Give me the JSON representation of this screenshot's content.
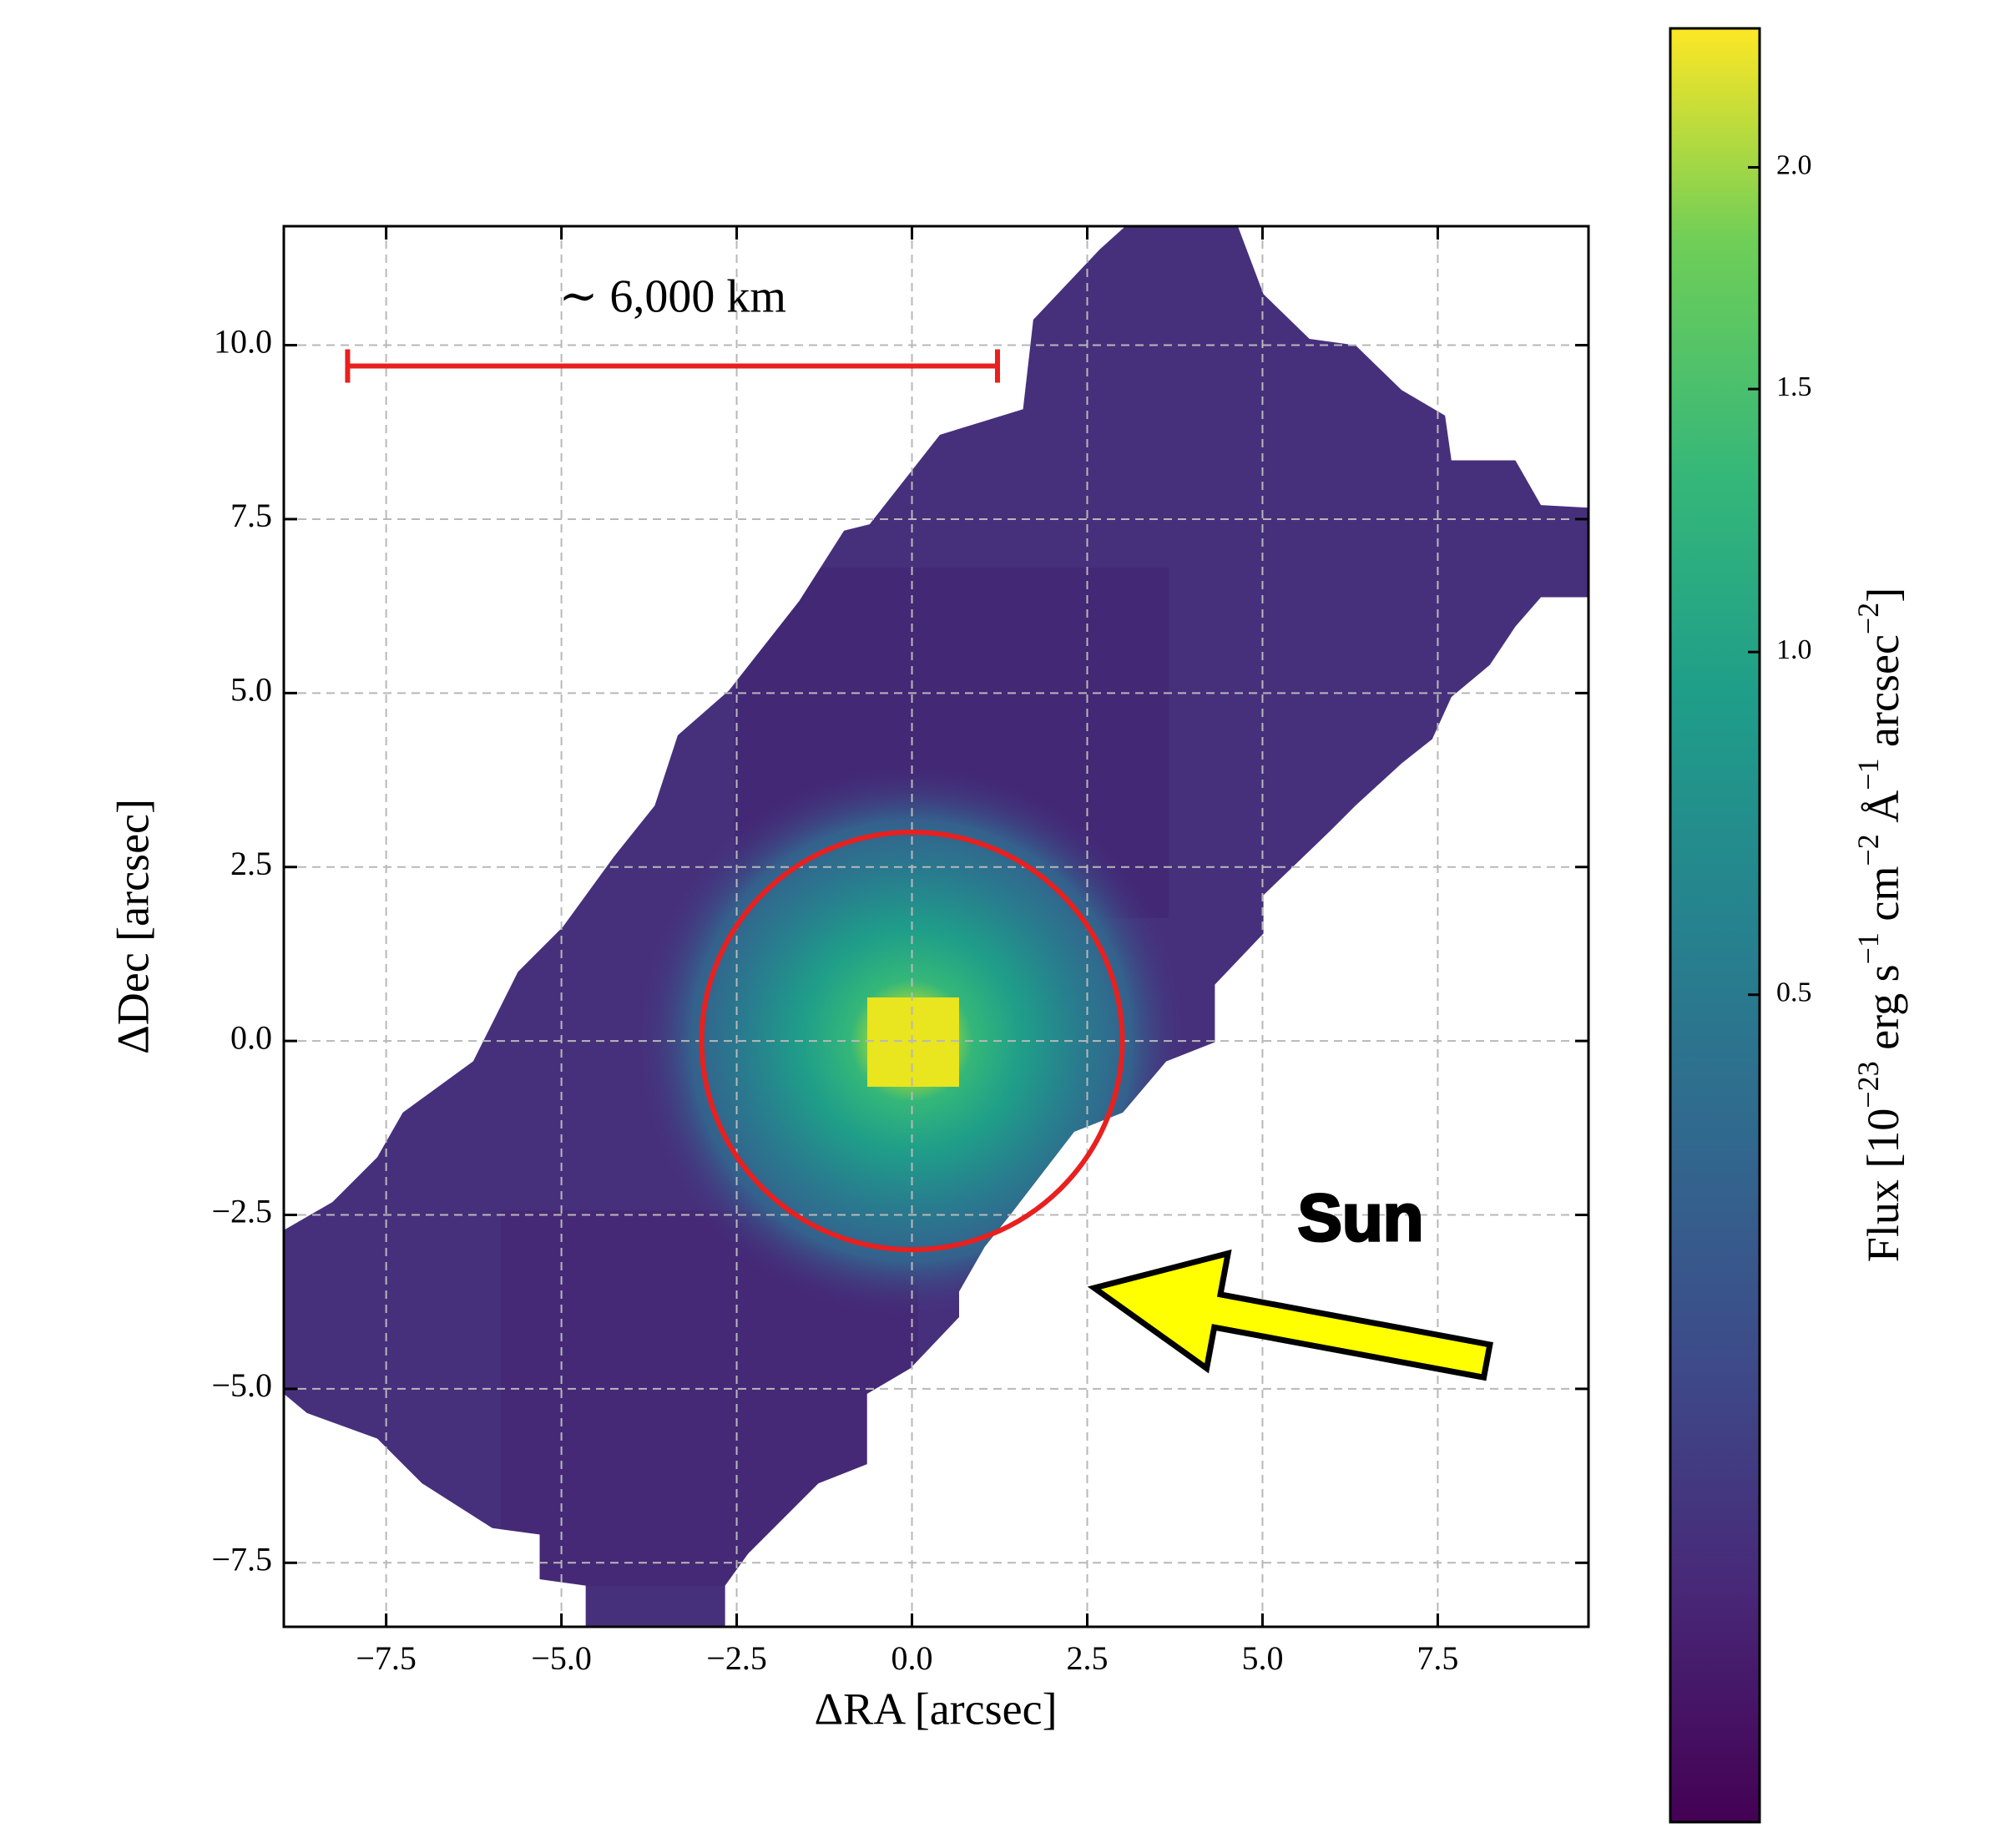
{
  "chart_data": {
    "type": "heatmap",
    "xlabel": "ΔRA [arcsec]",
    "ylabel": "ΔDec [arcsec]",
    "xlim": [
      -8.96,
      9.65
    ],
    "ylim": [
      -8.42,
      11.71
    ],
    "xticks": [
      {
        "value": -7.5,
        "label": "−7.5"
      },
      {
        "value": -5,
        "label": "−5.0"
      },
      {
        "value": -2.5,
        "label": "−2.5"
      },
      {
        "value": 0,
        "label": "0.0"
      },
      {
        "value": 2.5,
        "label": "2.5"
      },
      {
        "value": 5,
        "label": "5.0"
      },
      {
        "value": 7.5,
        "label": "7.5"
      }
    ],
    "yticks": [
      {
        "value": -7.5,
        "label": "−7.5"
      },
      {
        "value": -5,
        "label": "−5.0"
      },
      {
        "value": -2.5,
        "label": "−2.5"
      },
      {
        "value": 0,
        "label": "0.0"
      },
      {
        "value": 2.5,
        "label": "2.5"
      },
      {
        "value": 5,
        "label": "5.0"
      },
      {
        "value": 7.5,
        "label": "7.5"
      },
      {
        "value": 10,
        "label": "10.0"
      }
    ],
    "grid": true,
    "colorbar": {
      "label": [
        "Flux [10",
        "−23",
        " erg s",
        "−1",
        " cm",
        "−2",
        " Å",
        "−1",
        " arcsec",
        "−2",
        "]"
      ],
      "lim": [
        0,
        2.35
      ],
      "scale": "sqrt",
      "ticks": [
        {
          "value": 0.5,
          "label": "0.5"
        },
        {
          "value": 1,
          "label": "1.0"
        },
        {
          "value": 1.5,
          "label": "1.5"
        },
        {
          "value": 2,
          "label": "2.0"
        }
      ]
    },
    "annotations": {
      "scale_bar": {
        "text": "∼ 6,000 km",
        "x": [
          -8.05,
          1.22
        ],
        "y": 9.7,
        "color": "#e8201f"
      },
      "circle": {
        "center": [
          0,
          0
        ],
        "radius": 3.0,
        "color": "#e8201f"
      },
      "arrow": {
        "text": "Sun",
        "from": [
          8.2,
          -4.6
        ],
        "to": [
          2.6,
          -3.55
        ],
        "color": "#ffff00"
      }
    }
  }
}
